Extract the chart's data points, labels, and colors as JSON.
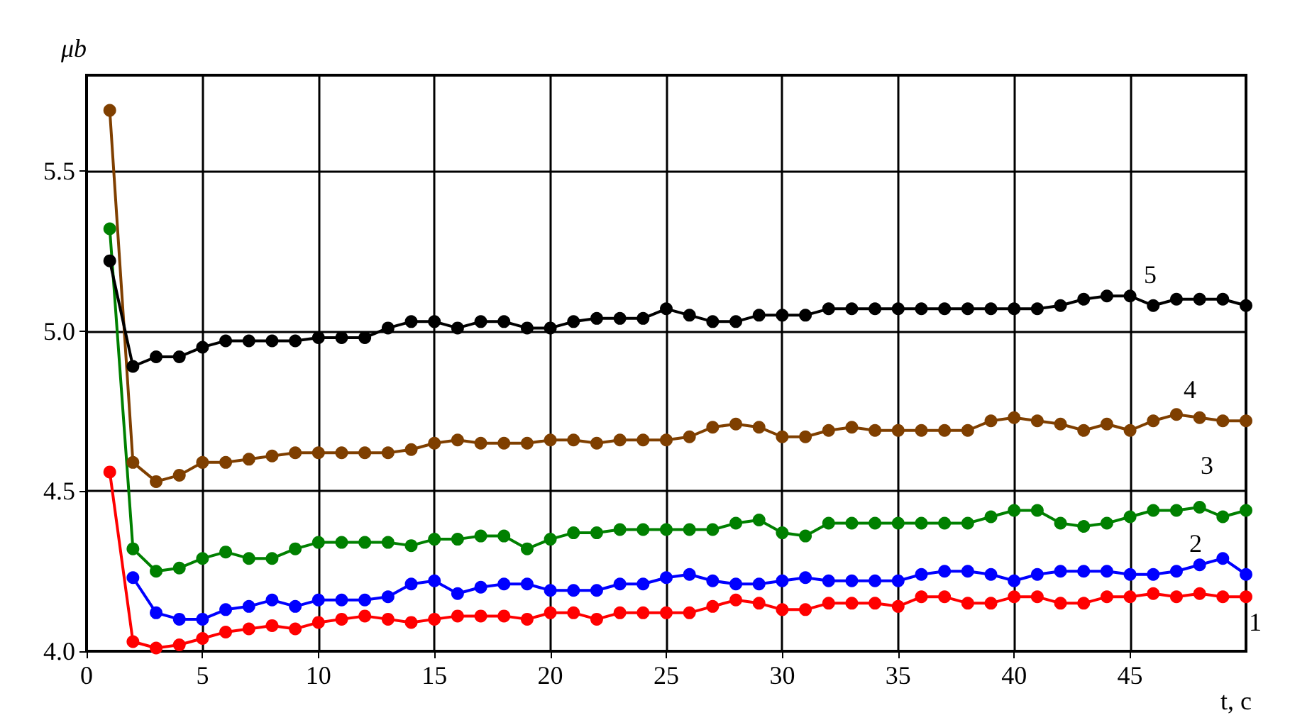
{
  "chart_data": {
    "type": "line",
    "xlabel": "t, c",
    "ylabel": "μb",
    "x": [
      1,
      2,
      3,
      4,
      5,
      6,
      7,
      8,
      9,
      10,
      11,
      12,
      13,
      14,
      15,
      16,
      17,
      18,
      19,
      20,
      21,
      22,
      23,
      24,
      25,
      26,
      27,
      28,
      29,
      30,
      31,
      32,
      33,
      34,
      35,
      36,
      37,
      38,
      39,
      40,
      41,
      42,
      43,
      44,
      45,
      46,
      47,
      48,
      49,
      50
    ],
    "series": [
      {
        "name": "1",
        "color": "#ff0000",
        "values": [
          4.56,
          4.03,
          4.01,
          4.02,
          4.04,
          4.06,
          4.07,
          4.08,
          4.07,
          4.09,
          4.1,
          4.11,
          4.1,
          4.09,
          4.1,
          4.11,
          4.11,
          4.11,
          4.1,
          4.12,
          4.12,
          4.1,
          4.12,
          4.12,
          4.12,
          4.12,
          4.14,
          4.16,
          4.15,
          4.13,
          4.13,
          4.15,
          4.15,
          4.15,
          4.14,
          4.17,
          4.17,
          4.15,
          4.15,
          4.17,
          4.17,
          4.15,
          4.15,
          4.17,
          4.17,
          4.18,
          4.17,
          4.18,
          4.17,
          4.17
        ]
      },
      {
        "name": "2",
        "color": "#0000ff",
        "values": [
          null,
          4.23,
          4.12,
          4.1,
          4.1,
          4.13,
          4.14,
          4.16,
          4.14,
          4.16,
          4.16,
          4.16,
          4.17,
          4.21,
          4.22,
          4.18,
          4.2,
          4.21,
          4.21,
          4.19,
          4.19,
          4.19,
          4.21,
          4.21,
          4.23,
          4.24,
          4.22,
          4.21,
          4.21,
          4.22,
          4.23,
          4.22,
          4.22,
          4.22,
          4.22,
          4.24,
          4.25,
          4.25,
          4.24,
          4.22,
          4.24,
          4.25,
          4.25,
          4.25,
          4.24,
          4.24,
          4.25,
          4.27,
          4.29,
          4.24
        ]
      },
      {
        "name": "3",
        "color": "#008000",
        "values": [
          5.32,
          4.32,
          4.25,
          4.26,
          4.29,
          4.31,
          4.29,
          4.29,
          4.32,
          4.34,
          4.34,
          4.34,
          4.34,
          4.33,
          4.35,
          4.35,
          4.36,
          4.36,
          4.32,
          4.35,
          4.37,
          4.37,
          4.38,
          4.38,
          4.38,
          4.38,
          4.38,
          4.4,
          4.41,
          4.37,
          4.36,
          4.4,
          4.4,
          4.4,
          4.4,
          4.4,
          4.4,
          4.4,
          4.42,
          4.44,
          4.44,
          4.4,
          4.39,
          4.4,
          4.42,
          4.44,
          4.44,
          4.45,
          4.42,
          4.44
        ]
      },
      {
        "name": "4",
        "color": "#7f3f00",
        "values": [
          5.69,
          4.59,
          4.53,
          4.55,
          4.59,
          4.59,
          4.6,
          4.61,
          4.62,
          4.62,
          4.62,
          4.62,
          4.62,
          4.63,
          4.65,
          4.66,
          4.65,
          4.65,
          4.65,
          4.66,
          4.66,
          4.65,
          4.66,
          4.66,
          4.66,
          4.67,
          4.7,
          4.71,
          4.7,
          4.67,
          4.67,
          4.69,
          4.7,
          4.69,
          4.69,
          4.69,
          4.69,
          4.69,
          4.72,
          4.73,
          4.72,
          4.71,
          4.69,
          4.71,
          4.69,
          4.72,
          4.74,
          4.73,
          4.72,
          4.72
        ]
      },
      {
        "name": "5",
        "color": "#000000",
        "values": [
          5.22,
          4.89,
          4.92,
          4.92,
          4.95,
          4.97,
          4.97,
          4.97,
          4.97,
          4.98,
          4.98,
          4.98,
          5.01,
          5.03,
          5.03,
          5.01,
          5.03,
          5.03,
          5.01,
          5.01,
          5.03,
          5.04,
          5.04,
          5.04,
          5.07,
          5.05,
          5.03,
          5.03,
          5.05,
          5.05,
          5.05,
          5.07,
          5.07,
          5.07,
          5.07,
          5.07,
          5.07,
          5.07,
          5.07,
          5.07,
          5.07,
          5.08,
          5.1,
          5.11,
          5.11,
          5.08,
          5.1,
          5.1,
          5.1,
          5.08
        ]
      }
    ],
    "xlim": [
      0,
      50
    ],
    "xticks": [
      0,
      5,
      10,
      15,
      20,
      25,
      30,
      35,
      40,
      45
    ],
    "ylim": [
      4,
      5.8
    ],
    "yticks": [
      {
        "value": 4,
        "label": "4.0"
      },
      {
        "value": 4.5,
        "label": "4.5"
      },
      {
        "value": 5,
        "label": "5.0"
      },
      {
        "value": 5.5,
        "label": "5.5"
      }
    ],
    "grid": true,
    "marker": "circle",
    "line_style": "solid"
  }
}
